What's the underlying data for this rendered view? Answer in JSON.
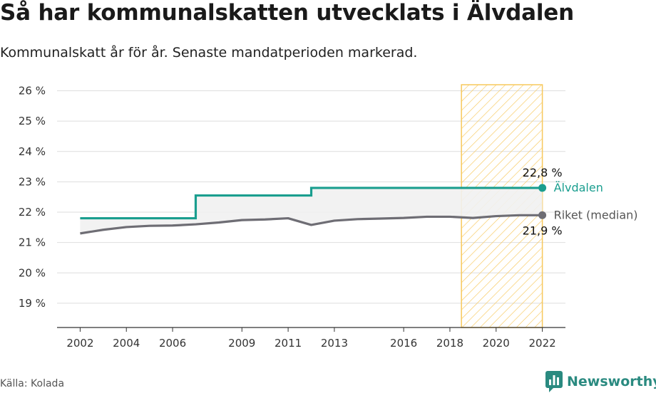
{
  "title": "Så har kommunalskatten utvecklats i Älvdalen",
  "subtitle": "Kommunalskatt år för år. Senaste mandatperioden markerad.",
  "source": "Källa: Kolada",
  "brand": "Newsworthy",
  "colors": {
    "alvdalen": "#1a9e8f",
    "riket": "#6e6d74",
    "highlight": "#f7c85c",
    "brand": "#2a8a80"
  },
  "chart_data": {
    "type": "line",
    "title": "Så har kommunalskatten utvecklats i Älvdalen",
    "subtitle": "Kommunalskatt år för år. Senaste mandatperioden markerad.",
    "xlabel": "",
    "ylabel": "",
    "xlim": [
      2001,
      2023
    ],
    "ylim": [
      18.2,
      26.2
    ],
    "x_ticks": [
      {
        "value": 2002,
        "label": "2002"
      },
      {
        "value": 2004,
        "label": "2004"
      },
      {
        "value": 2006,
        "label": "2006"
      },
      {
        "value": 2009,
        "label": "2009"
      },
      {
        "value": 2011,
        "label": "2011"
      },
      {
        "value": 2013,
        "label": "2013"
      },
      {
        "value": 2016,
        "label": "2016"
      },
      {
        "value": 2018,
        "label": "2018"
      },
      {
        "value": 2020,
        "label": "2020"
      },
      {
        "value": 2022,
        "label": "2022"
      }
    ],
    "y_ticks": [
      {
        "value": 19,
        "label": "19 %"
      },
      {
        "value": 20,
        "label": "20 %"
      },
      {
        "value": 21,
        "label": "21 %"
      },
      {
        "value": 22,
        "label": "22 %"
      },
      {
        "value": 23,
        "label": "23 %"
      },
      {
        "value": 24,
        "label": "24 %"
      },
      {
        "value": 25,
        "label": "25 %"
      },
      {
        "value": 26,
        "label": "26 %"
      }
    ],
    "grid": true,
    "highlight_period": [
      2018.5,
      2022
    ],
    "x": [
      2002,
      2003,
      2004,
      2005,
      2006,
      2007,
      2008,
      2009,
      2010,
      2011,
      2012,
      2013,
      2014,
      2015,
      2016,
      2017,
      2018,
      2019,
      2020,
      2021,
      2022
    ],
    "series": [
      {
        "name": "Älvdalen",
        "color": "#1a9e8f",
        "end_label": "22,8 %",
        "values": [
          21.8,
          21.8,
          21.8,
          21.8,
          21.8,
          21.8,
          22.55,
          22.55,
          22.55,
          22.55,
          22.55,
          22.8,
          22.8,
          22.8,
          22.8,
          22.8,
          22.8,
          22.8,
          22.8,
          22.8,
          22.8
        ]
      },
      {
        "name": "Riket (median)",
        "color": "#6e6d74",
        "end_label": "21,9 %",
        "values": [
          21.3,
          21.42,
          21.51,
          21.55,
          21.56,
          21.6,
          21.66,
          21.74,
          21.76,
          21.8,
          21.58,
          21.72,
          21.77,
          21.79,
          21.81,
          21.85,
          21.85,
          21.81,
          21.87,
          21.9,
          21.9
        ]
      }
    ]
  }
}
